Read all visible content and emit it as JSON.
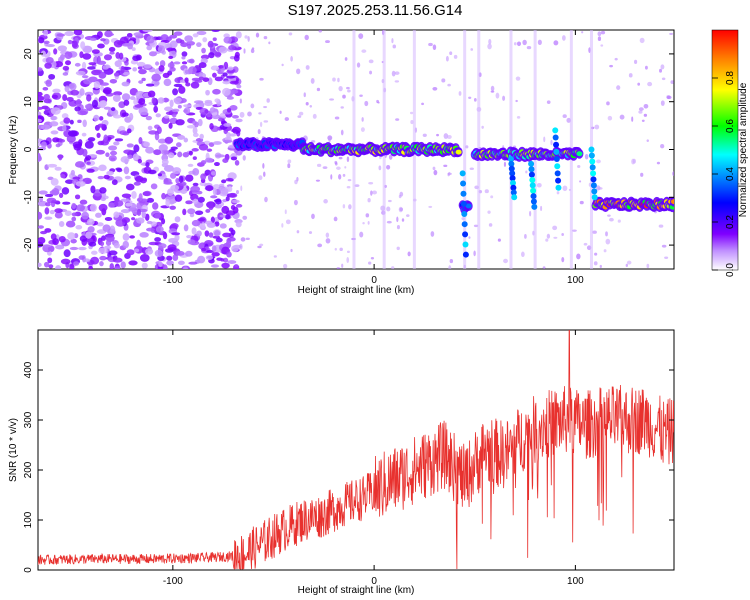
{
  "title": "S197.2025.253.11.56.G14",
  "chart_data": [
    {
      "type": "heatmap",
      "title": "S197.2025.253.11.56.G14",
      "xlabel": "Height of straight line (km)",
      "ylabel": "Frequency (Hz)",
      "xlim": [
        -167,
        149
      ],
      "ylim": [
        -25,
        25
      ],
      "xticks": [
        -100,
        0,
        100
      ],
      "yticks": [
        -20,
        -10,
        0,
        10,
        20
      ],
      "colorbar": {
        "label": "Normalized spectral amplitude",
        "range": [
          0.0,
          1.0
        ],
        "ticks": [
          0.0,
          0.2,
          0.4,
          0.6,
          0.8
        ],
        "colors": [
          "#ffffff",
          "#7f00ff",
          "#0000ff",
          "#00ffff",
          "#00ff00",
          "#ffff00",
          "#ff0000"
        ]
      },
      "ridge": [
        {
          "x0": -68,
          "x1": -35,
          "f": 1,
          "amp": 0.35
        },
        {
          "x0": -35,
          "x1": 42,
          "f": 0,
          "amp": 0.75
        },
        {
          "x0": 44,
          "x1": 47,
          "f": -12,
          "amp": 0.4
        },
        {
          "x0": 50,
          "x1": 102,
          "f": -1,
          "amp": 0.7
        },
        {
          "x0": 110,
          "x1": 149,
          "f": -11.5,
          "amp": 0.95
        }
      ]
    },
    {
      "type": "line",
      "xlabel": "Height of straight line (km)",
      "ylabel": "SNR (10 * v/v)",
      "xlim": [
        -167,
        149
      ],
      "ylim": [
        0,
        480
      ],
      "xticks": [
        -100,
        0,
        100
      ],
      "yticks": [
        0,
        100,
        200,
        300,
        400
      ],
      "series": [
        {
          "name": "SNR",
          "color": "#e8312e",
          "x": [
            -167,
            -140,
            -110,
            -80,
            -65,
            -55,
            -45,
            -35,
            -25,
            -15,
            -5,
            5,
            15,
            25,
            35,
            45,
            55,
            65,
            75,
            85,
            95,
            105,
            115,
            125,
            135,
            145,
            149
          ],
          "y": [
            20,
            22,
            22,
            25,
            30,
            55,
            80,
            100,
            110,
            130,
            145,
            170,
            190,
            210,
            230,
            180,
            240,
            230,
            270,
            290,
            300,
            290,
            300,
            300,
            300,
            270,
            280
          ]
        }
      ]
    }
  ]
}
